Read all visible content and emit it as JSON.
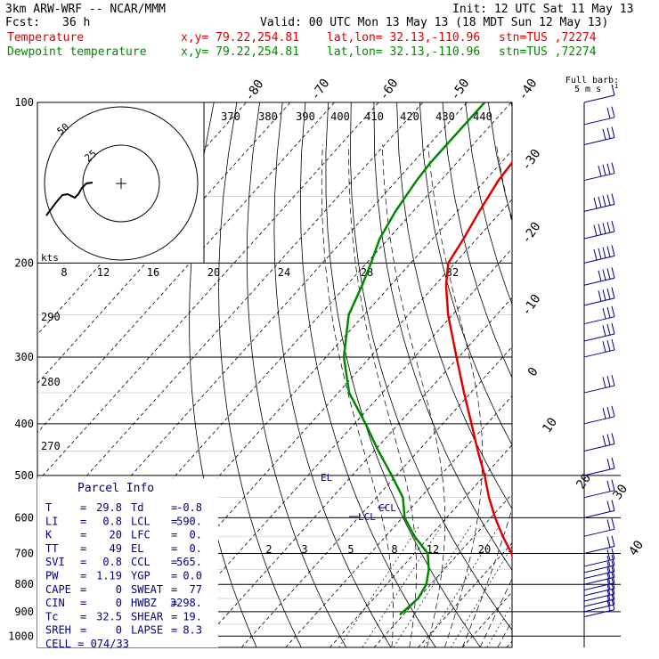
{
  "header": {
    "model": "3km ARW-WRF -- NCAR/MMM",
    "init": "Init: 12 UTC Sat 11 May 13",
    "fcst_label": "Fcst:",
    "fcst_value": "36 h",
    "valid": "Valid: 00 UTC Mon 13 May 13 (18 MDT Sun 12 May 13)",
    "temp_label": "Temperature",
    "dew_label": "Dewpoint temperature",
    "xy": "x,y= 79.22,254.81",
    "latlon": "lat,lon= 32.13,-110.96",
    "stn": "stn=TUS ,72274"
  },
  "colors": {
    "temperature": "#e00000",
    "dewpoint": "#008800",
    "barb": "#000080",
    "info": "#000080"
  },
  "chart_data": {
    "type": "line",
    "ylabel": "",
    "xlabel": "",
    "pressure_ticks": [
      "100",
      "200",
      "300",
      "400",
      "500",
      "600",
      "700",
      "800",
      "900",
      "1000"
    ],
    "pressure_values": [
      100,
      200,
      300,
      400,
      500,
      600,
      700,
      800,
      900,
      1000
    ],
    "ylim": [
      1000,
      100
    ],
    "y_scale": "log",
    "isotherm_labels": [
      "-80",
      "-70",
      "-60",
      "-50",
      "-40",
      "-30",
      "-20",
      "-10",
      "0",
      "10",
      "20",
      "30",
      "40"
    ],
    "theta_labels": [
      "370",
      "380",
      "390",
      "400",
      "410",
      "420",
      "430",
      "440"
    ],
    "theta_inset_labels": [
      "290",
      "280",
      "270"
    ],
    "mixing_ratio_labels": [
      "2",
      "3",
      "5",
      "8",
      "12",
      "20"
    ],
    "hodo_speed_labels": [
      "8",
      "12",
      "16",
      "20",
      "24",
      "28",
      "32"
    ],
    "hodograph": {
      "rings": [
        "25",
        "50"
      ],
      "unit": "kts"
    },
    "barb_legend": {
      "title": "Full barb:",
      "value": "5 m s",
      "exp": "-1"
    },
    "series": [
      {
        "name": "Temperature",
        "pressure": [
          912,
          850,
          800,
          750,
          700,
          650,
          600,
          550,
          500,
          450,
          400,
          350,
          300,
          250,
          220,
          200,
          180,
          160,
          140,
          130,
          120,
          110,
          100
        ],
        "temp": [
          29.8,
          26.0,
          21.0,
          16.5,
          12.0,
          6.5,
          1.0,
          -4.5,
          -10.0,
          -16.5,
          -23.5,
          -31.5,
          -40.5,
          -51.0,
          -57.5,
          -61.5,
          -63.0,
          -65.0,
          -67.0,
          -67.5,
          -67.0,
          -67.0,
          -67.0
        ]
      },
      {
        "name": "Dewpoint temperature",
        "pressure": [
          912,
          850,
          800,
          750,
          700,
          650,
          600,
          550,
          500,
          450,
          400,
          350,
          300,
          250,
          220,
          200,
          180,
          160,
          140,
          130,
          120,
          110,
          100
        ],
        "temp": [
          -0.8,
          0.0,
          -1.0,
          -3.5,
          -7.0,
          -13.5,
          -19.5,
          -24.0,
          -31.0,
          -39.0,
          -47.5,
          -57.5,
          -66.0,
          -73.5,
          -76.5,
          -79.0,
          -82.0,
          -84.0,
          -85.5,
          -86.0,
          -86.0,
          -86.0,
          -86.0
        ]
      }
    ],
    "annotations": {
      "ccl": "CCL",
      "lcl": "LCL",
      "el": "EL"
    },
    "wind_barbs": {
      "pressure": [
        920,
        900,
        880,
        860,
        840,
        820,
        800,
        780,
        760,
        740,
        700,
        650,
        600,
        550,
        500,
        450,
        400,
        350,
        300,
        280,
        260,
        240,
        220,
        200,
        180,
        160,
        140,
        120,
        110,
        100
      ],
      "speed_ms": [
        10,
        12,
        12,
        12,
        12,
        12,
        12,
        12,
        12,
        12,
        10,
        10,
        10,
        10,
        12,
        15,
        15,
        15,
        15,
        15,
        18,
        20,
        20,
        25,
        25,
        25,
        20,
        15,
        10,
        5
      ]
    }
  },
  "parcel_info": {
    "title": "Parcel Info",
    "rows": [
      [
        "T",
        "=",
        "29.8",
        "Td",
        "=",
        "-0.8"
      ],
      [
        "LI",
        "=",
        "0.8",
        "LCL",
        "=",
        "590."
      ],
      [
        "K",
        "=",
        "20",
        "LFC",
        "=",
        "0."
      ],
      [
        "TT",
        "=",
        "49",
        "EL",
        "=",
        "0."
      ],
      [
        "SVI",
        "=",
        "0.8",
        "CCL",
        "=",
        "565."
      ],
      [
        "PW",
        "=",
        "1.19",
        "YGP",
        "=",
        "0.0"
      ],
      [
        "CAPE",
        "=",
        "0",
        "SWEAT",
        "=",
        "77"
      ],
      [
        "CIN",
        "=",
        "0",
        "HWBZ",
        "=",
        "3298."
      ],
      [
        "Tc",
        "=",
        "32.5",
        "SHEAR",
        "=",
        "19."
      ],
      [
        "SREH",
        "=",
        "0",
        "LAPSE",
        "=",
        "8.3"
      ]
    ],
    "cell": "CELL = 074/33"
  }
}
